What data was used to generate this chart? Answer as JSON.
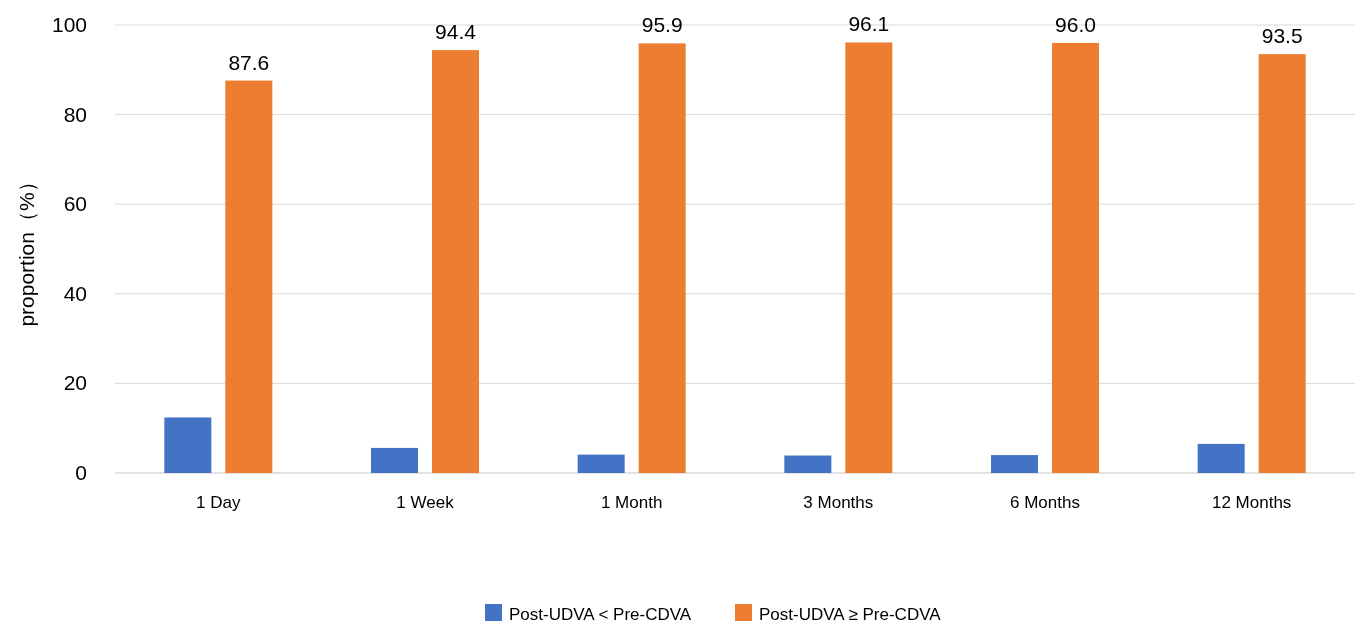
{
  "chart_data": {
    "type": "bar",
    "ylabel": "proportion（%）",
    "categories": [
      "1 Day",
      "1 Week",
      "1 Month",
      "3 Months",
      "6 Months",
      "12 Months"
    ],
    "series": [
      {
        "name": "Post-UDVA < Pre-CDVA",
        "color": "#4472c4",
        "values": [
          12.4,
          5.6,
          4.1,
          3.9,
          4.0,
          6.5
        ]
      },
      {
        "name": "Post-UDVA ≥ Pre-CDVA",
        "color": "#ed7d31",
        "values": [
          87.6,
          94.4,
          95.9,
          96.1,
          96.0,
          93.5
        ],
        "value_labels": [
          "87.6",
          "94.4",
          "95.9",
          "96.1",
          "96.0",
          "93.5"
        ]
      }
    ],
    "ylim": [
      0,
      100
    ],
    "yticks": [
      0,
      20,
      40,
      60,
      80,
      100
    ],
    "grid": "y",
    "legend": "bottom"
  }
}
